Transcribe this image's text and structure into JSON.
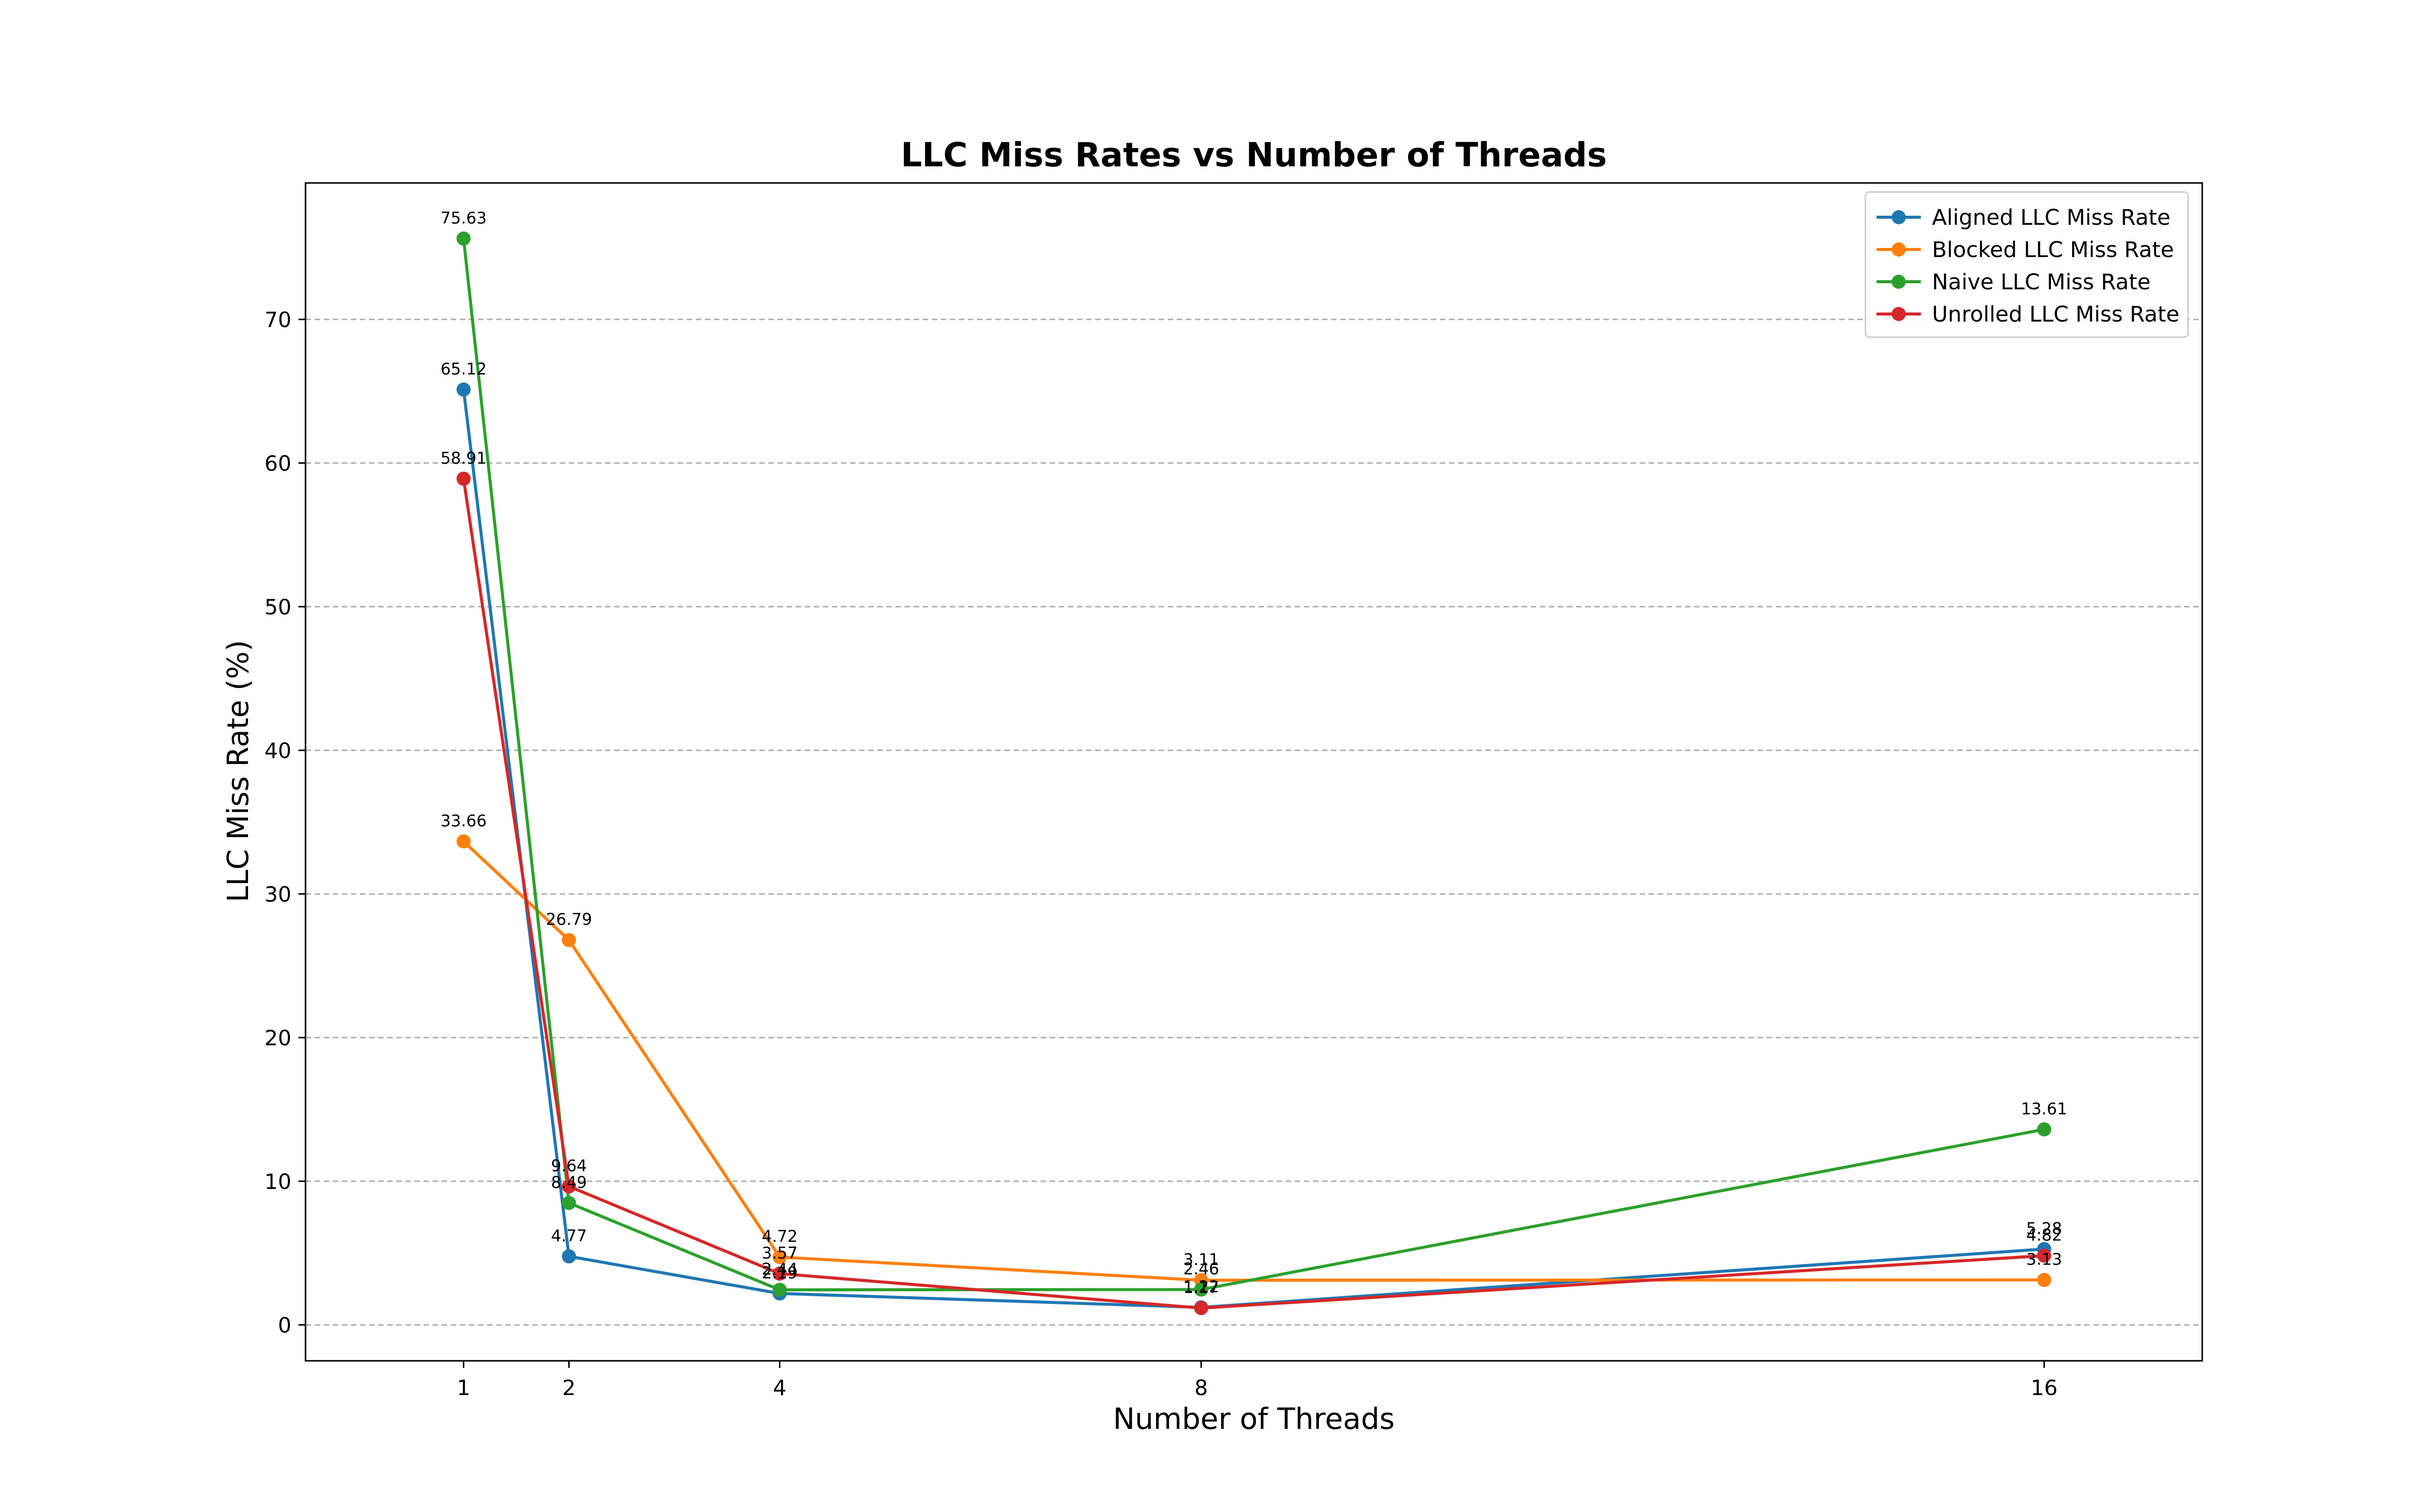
{
  "chart_data": {
    "type": "line",
    "title": "LLC Miss Rates vs Number of Threads",
    "xlabel": "Number of Threads",
    "ylabel": "LLC Miss Rate (%)",
    "x": [
      1,
      2,
      4,
      8,
      16
    ],
    "x_tick_labels": [
      "1",
      "2",
      "4",
      "8",
      "16"
    ],
    "xlim": [
      -0.5,
      17.5
    ],
    "ylim": [
      -2.5,
      79.5
    ],
    "y_ticks": [
      0,
      10,
      20,
      30,
      40,
      50,
      60,
      70
    ],
    "grid": "y-dashed",
    "legend_position": "top-right",
    "series": [
      {
        "name": "Aligned LLC Miss Rate",
        "color": "#1f77b4",
        "values": [
          65.12,
          4.77,
          2.19,
          1.22,
          5.28
        ],
        "labels": [
          "65.12",
          "4.77",
          "2.19",
          "1.22",
          "5.28"
        ]
      },
      {
        "name": "Blocked LLC Miss Rate",
        "color": "#ff7f0e",
        "values": [
          33.66,
          26.79,
          4.72,
          3.11,
          3.13
        ],
        "labels": [
          "33.66",
          "26.79",
          "4.72",
          "3.11",
          "3.13"
        ]
      },
      {
        "name": "Naive LLC Miss Rate",
        "color": "#2ca02c",
        "values": [
          75.63,
          8.49,
          2.44,
          2.46,
          13.61
        ],
        "labels": [
          "75.63",
          "8.49",
          "2.44",
          "2.46",
          "13.61"
        ]
      },
      {
        "name": "Unrolled LLC Miss Rate",
        "color": "#d62728",
        "values": [
          58.91,
          9.64,
          3.57,
          1.17,
          4.82
        ],
        "labels": [
          "58.91",
          "9.64",
          "3.57",
          "1.17",
          "4.82"
        ]
      }
    ]
  }
}
